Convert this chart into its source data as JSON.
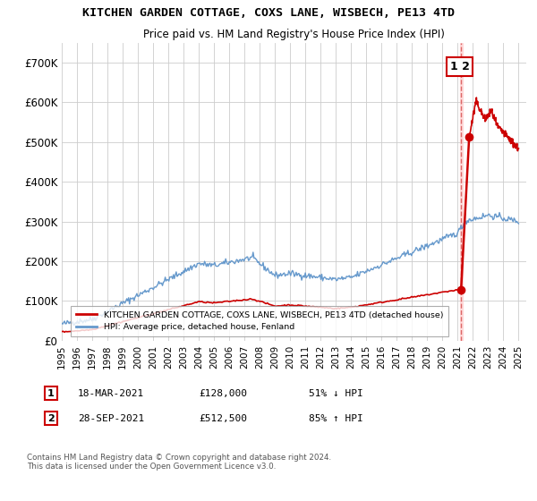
{
  "title": "KITCHEN GARDEN COTTAGE, COXS LANE, WISBECH, PE13 4TD",
  "subtitle": "Price paid vs. HM Land Registry's House Price Index (HPI)",
  "ylim": [
    0,
    750000
  ],
  "yticks": [
    0,
    100000,
    200000,
    300000,
    400000,
    500000,
    600000,
    700000
  ],
  "xlim_start": 1995.0,
  "xlim_end": 2025.5,
  "red_line_color": "#cc0000",
  "blue_line_color": "#6699cc",
  "dashed_line_color": "#dd6666",
  "dot_color_1": "#cc0000",
  "dot_color_2": "#cc0000",
  "transaction_1": {
    "date": "18-MAR-2021",
    "price": 128000,
    "pct": "51%",
    "dir": "↓"
  },
  "transaction_2": {
    "date": "28-SEP-2021",
    "price": 512500,
    "pct": "85%",
    "dir": "↑"
  },
  "legend_red_label": "KITCHEN GARDEN COTTAGE, COXS LANE, WISBECH, PE13 4TD (detached house)",
  "legend_blue_label": "HPI: Average price, detached house, Fenland",
  "footnote": "Contains HM Land Registry data © Crown copyright and database right 2024.\nThis data is licensed under the Open Government Licence v3.0.",
  "background_color": "#ffffff",
  "grid_color": "#cccccc",
  "label_1": "1",
  "label_2": "2",
  "transaction_x": 2021.22,
  "transaction_y_1": 128000,
  "transaction_y_2": 512500
}
